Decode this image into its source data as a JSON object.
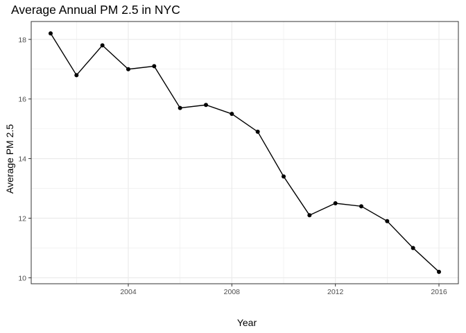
{
  "chart_data": {
    "type": "line",
    "title": "Average Annual PM 2.5 in NYC",
    "xlabel": "Year",
    "ylabel": "Average PM 2.5",
    "x": [
      2001,
      2002,
      2003,
      2004,
      2005,
      2006,
      2007,
      2008,
      2009,
      2010,
      2011,
      2012,
      2013,
      2014,
      2015,
      2016
    ],
    "series": [
      {
        "values": [
          18.2,
          16.8,
          17.8,
          17.0,
          17.1,
          15.7,
          15.8,
          15.5,
          14.9,
          13.4,
          12.1,
          12.5,
          12.4,
          11.9,
          11.0,
          10.2
        ]
      }
    ],
    "xlim": [
      2000.25,
      2016.75
    ],
    "ylim": [
      9.8,
      18.6
    ],
    "xticks": [
      2004,
      2008,
      2012,
      2016
    ],
    "yticks": [
      10,
      12,
      14,
      16,
      18
    ],
    "x_minor": [
      2002,
      2006,
      2010,
      2014
    ],
    "y_minor": [
      11,
      13,
      15,
      17
    ],
    "grid": true,
    "legend": "none",
    "line_color": "#000000",
    "grid_color": "#ebebeb",
    "panel_border_color": "#333333"
  }
}
